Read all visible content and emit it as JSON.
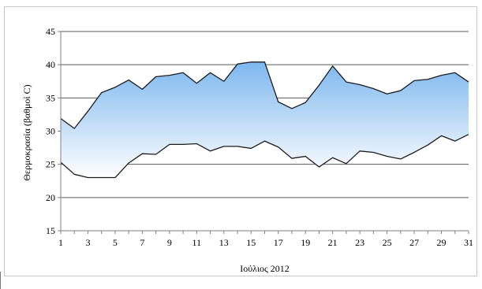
{
  "chart_data": {
    "type": "area",
    "title": "",
    "xlabel": "Ιούλιος 2012",
    "ylabel": "Θερμοκρασία (βαθμοί C)",
    "xlim": [
      1,
      31
    ],
    "ylim": [
      15,
      45
    ],
    "x_ticks": [
      1,
      3,
      5,
      7,
      9,
      11,
      13,
      15,
      17,
      19,
      21,
      23,
      25,
      27,
      29,
      31
    ],
    "y_ticks": [
      15,
      20,
      25,
      30,
      35,
      40,
      45
    ],
    "grid": "horizontal",
    "legend": "none",
    "x": [
      1,
      2,
      3,
      4,
      5,
      6,
      7,
      8,
      9,
      10,
      11,
      12,
      13,
      14,
      15,
      16,
      17,
      18,
      19,
      20,
      21,
      22,
      23,
      24,
      25,
      26,
      27,
      28,
      29,
      30,
      31
    ],
    "series": [
      {
        "values": [
          31.9,
          30.4,
          33.0,
          35.8,
          36.6,
          37.7,
          36.3,
          38.2,
          38.4,
          38.8,
          37.2,
          38.8,
          37.5,
          40.1,
          40.4,
          40.4,
          34.4,
          33.4,
          34.3,
          36.9,
          39.8,
          37.4,
          37.0,
          36.4,
          35.6,
          36.1,
          37.6,
          37.8,
          38.4,
          38.8,
          37.4
        ]
      },
      {
        "values": [
          25.3,
          23.5,
          23.0,
          23.0,
          23.0,
          25.2,
          26.6,
          26.5,
          28.0,
          28.0,
          28.1,
          27.0,
          27.7,
          27.7,
          27.4,
          28.5,
          27.6,
          25.9,
          26.2,
          24.6,
          26.0,
          25.1,
          27.0,
          26.8,
          26.2,
          25.8,
          26.8,
          27.9,
          29.3,
          28.5,
          29.5
        ]
      }
    ],
    "colors": {
      "line": "#1c1c1c",
      "fill_top": "#7db7ee",
      "fill_bottom": "#ffffff",
      "grid": "#5a5a5a",
      "axis": "#7f7f7f"
    }
  }
}
